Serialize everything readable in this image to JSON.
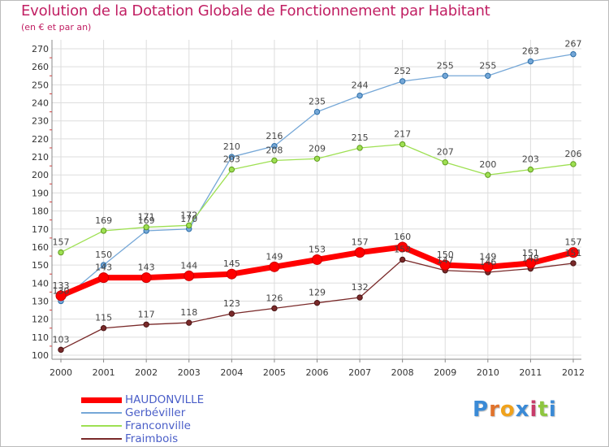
{
  "chart_data": {
    "type": "line",
    "title": "Evolution de la Dotation Globale de Fonctionnement par Habitant",
    "subtitle": "(en € et par an)",
    "x": [
      "2000",
      "2001",
      "2002",
      "2003",
      "2004",
      "2005",
      "2006",
      "2007",
      "2008",
      "2009",
      "2010",
      "2011",
      "2012"
    ],
    "ylim": [
      100,
      270
    ],
    "yticks": [
      100,
      110,
      120,
      130,
      140,
      150,
      160,
      170,
      180,
      190,
      200,
      210,
      220,
      230,
      240,
      250,
      260,
      270
    ],
    "grid": true,
    "legend_position": "bottom-left",
    "series": [
      {
        "name": "HAUDONVILLE",
        "color": "#ff0000",
        "values": [
          133,
          143,
          143,
          144,
          145,
          149,
          153,
          157,
          160,
          150,
          149,
          151,
          157
        ]
      },
      {
        "name": "Gerbéviller",
        "color": "#75a7d7",
        "values": [
          130,
          150,
          169,
          170,
          210,
          216,
          235,
          244,
          252,
          255,
          255,
          263,
          267
        ]
      },
      {
        "name": "Franconville",
        "color": "#9ee052",
        "values": [
          157,
          169,
          171,
          172,
          203,
          208,
          209,
          215,
          217,
          207,
          200,
          203,
          206
        ]
      },
      {
        "name": "Fraimbois",
        "color": "#7a2a2a",
        "values": [
          103,
          115,
          117,
          118,
          123,
          126,
          129,
          132,
          153,
          147,
          146,
          148,
          151
        ]
      }
    ]
  },
  "logo": {
    "letters": [
      "P",
      "r",
      "o",
      "x",
      "i",
      "t",
      "i"
    ],
    "colors": [
      "#3a8ad6",
      "#e0732c",
      "#f0a21c",
      "#3a8ad6",
      "#c73c6a",
      "#8ec63f",
      "#3a8ad6"
    ]
  },
  "colors": {
    "title": "#c11f63",
    "axis_text": "#333333",
    "grid": "#dddddd"
  }
}
